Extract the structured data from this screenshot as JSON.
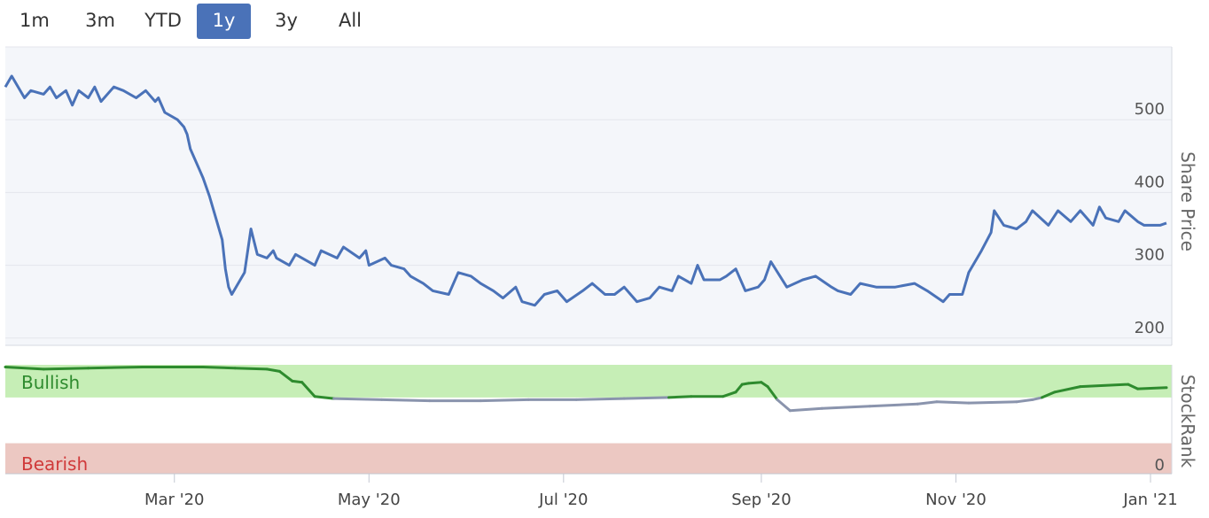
{
  "range_selector": {
    "buttons": [
      {
        "label": "1m",
        "active": false
      },
      {
        "label": "3m",
        "active": false
      },
      {
        "label": "YTD",
        "active": false
      },
      {
        "label": "1y",
        "active": true
      },
      {
        "label": "3y",
        "active": false
      },
      {
        "label": "All",
        "active": false
      }
    ]
  },
  "colors": {
    "price_line": "#4a72b8",
    "price_fill": "#f4f6fa",
    "bullish_band": "#c6eeb6",
    "bearish_band": "#ecc8c2",
    "rank_bullish_line": "#2e8b2e",
    "rank_neutral_line": "#8a94ad",
    "bullish_label": "#2e8b2e",
    "bearish_label": "#d03a3a"
  },
  "chart_data": [
    {
      "type": "line",
      "ylabel": "Share Price",
      "ylim": [
        190,
        600
      ],
      "yticks": [
        200,
        300,
        400,
        500
      ],
      "x_ticks": [
        "Mar '20",
        "May '20",
        "Jul '20",
        "Sep '20",
        "Nov '20",
        "Jan '21"
      ],
      "x_tick_dates": [
        "2020-03-01",
        "2020-05-01",
        "2020-07-01",
        "2020-09-01",
        "2020-11-01",
        "2021-01-01"
      ],
      "x_range": [
        "2020-01-08",
        "2021-01-06"
      ],
      "series": [
        {
          "x": [
            "2020-01-08",
            "2020-01-10",
            "2020-01-14",
            "2020-01-16",
            "2020-01-20",
            "2020-01-22",
            "2020-01-24",
            "2020-01-27",
            "2020-01-29",
            "2020-01-31",
            "2020-02-03",
            "2020-02-05",
            "2020-02-07",
            "2020-02-11",
            "2020-02-14",
            "2020-02-18",
            "2020-02-21",
            "2020-02-24",
            "2020-02-25",
            "2020-02-27",
            "2020-03-02",
            "2020-03-04",
            "2020-03-05",
            "2020-03-06",
            "2020-03-09",
            "2020-03-10",
            "2020-03-12",
            "2020-03-13",
            "2020-03-16",
            "2020-03-17",
            "2020-03-18",
            "2020-03-19",
            "2020-03-23",
            "2020-03-25",
            "2020-03-27",
            "2020-03-30",
            "2020-04-01",
            "2020-04-02",
            "2020-04-06",
            "2020-04-08",
            "2020-04-14",
            "2020-04-16",
            "2020-04-21",
            "2020-04-23",
            "2020-04-28",
            "2020-04-30",
            "2020-05-01",
            "2020-05-06",
            "2020-05-08",
            "2020-05-12",
            "2020-05-14",
            "2020-05-18",
            "2020-05-21",
            "2020-05-26",
            "2020-05-29",
            "2020-06-02",
            "2020-06-05",
            "2020-06-09",
            "2020-06-12",
            "2020-06-16",
            "2020-06-18",
            "2020-06-22",
            "2020-06-25",
            "2020-06-29",
            "2020-07-02",
            "2020-07-07",
            "2020-07-10",
            "2020-07-14",
            "2020-07-17",
            "2020-07-20",
            "2020-07-22",
            "2020-07-24",
            "2020-07-28",
            "2020-07-31",
            "2020-08-04",
            "2020-08-06",
            "2020-08-10",
            "2020-08-12",
            "2020-08-14",
            "2020-08-19",
            "2020-08-21",
            "2020-08-24",
            "2020-08-27",
            "2020-08-31",
            "2020-09-02",
            "2020-09-04",
            "2020-09-09",
            "2020-09-14",
            "2020-09-18",
            "2020-09-23",
            "2020-09-25",
            "2020-09-29",
            "2020-10-02",
            "2020-10-07",
            "2020-10-13",
            "2020-10-19",
            "2020-10-23",
            "2020-10-28",
            "2020-10-30",
            "2020-11-03",
            "2020-11-05",
            "2020-11-09",
            "2020-11-12",
            "2020-11-13",
            "2020-11-16",
            "2020-11-20",
            "2020-11-23",
            "2020-11-25",
            "2020-11-30",
            "2020-12-03",
            "2020-12-07",
            "2020-12-10",
            "2020-12-14",
            "2020-12-16",
            "2020-12-18",
            "2020-12-22",
            "2020-12-24",
            "2020-12-28",
            "2020-12-30",
            "2021-01-04",
            "2021-01-06"
          ],
          "values": [
            545,
            560,
            530,
            540,
            535,
            545,
            530,
            540,
            520,
            540,
            530,
            545,
            525,
            545,
            540,
            530,
            540,
            525,
            530,
            510,
            500,
            490,
            480,
            460,
            430,
            420,
            395,
            380,
            335,
            295,
            270,
            260,
            290,
            350,
            315,
            310,
            320,
            310,
            300,
            315,
            300,
            320,
            310,
            325,
            310,
            320,
            300,
            310,
            300,
            295,
            285,
            275,
            265,
            260,
            290,
            285,
            275,
            265,
            255,
            270,
            250,
            245,
            260,
            265,
            250,
            265,
            275,
            260,
            260,
            270,
            260,
            250,
            255,
            270,
            265,
            285,
            275,
            300,
            280,
            280,
            285,
            295,
            265,
            270,
            280,
            305,
            270,
            280,
            285,
            270,
            265,
            260,
            275,
            270,
            270,
            275,
            265,
            250,
            260,
            260,
            290,
            320,
            345,
            375,
            355,
            350,
            360,
            375,
            355,
            375,
            360,
            375,
            355,
            380,
            365,
            360,
            375,
            360,
            355,
            355,
            358
          ]
        }
      ]
    },
    {
      "type": "line",
      "ylabel": "StockRank",
      "ylim": [
        0,
        100
      ],
      "yticks": [
        0
      ],
      "bands": [
        {
          "label": "Bullish",
          "from": 70,
          "to": 100
        },
        {
          "label": "Bearish",
          "from": 0,
          "to": 28
        }
      ],
      "series": [
        {
          "x": [
            "2020-01-08",
            "2020-01-20",
            "2020-02-03",
            "2020-02-20",
            "2020-03-10",
            "2020-03-20",
            "2020-03-30",
            "2020-04-03",
            "2020-04-07",
            "2020-04-10",
            "2020-04-14",
            "2020-04-20",
            "2020-05-05",
            "2020-05-20",
            "2020-06-05",
            "2020-06-20",
            "2020-07-05",
            "2020-07-20",
            "2020-08-03",
            "2020-08-10",
            "2020-08-20",
            "2020-08-24",
            "2020-08-26",
            "2020-08-28",
            "2020-09-01",
            "2020-09-03",
            "2020-09-06",
            "2020-09-10",
            "2020-09-20",
            "2020-10-05",
            "2020-10-20",
            "2020-10-26",
            "2020-11-05",
            "2020-11-20",
            "2020-11-25",
            "2020-11-28",
            "2020-12-02",
            "2020-12-10",
            "2020-12-25",
            "2020-12-28",
            "2021-01-06"
          ],
          "values": [
            98,
            96,
            97,
            98,
            98,
            97,
            96,
            94,
            85,
            84,
            71,
            69,
            68,
            67,
            67,
            68,
            68,
            69,
            70,
            71,
            71,
            75,
            82,
            83,
            84,
            80,
            68,
            58,
            60,
            62,
            64,
            66,
            65,
            66,
            68,
            70,
            75,
            80,
            82,
            78,
            79
          ]
        }
      ]
    }
  ]
}
